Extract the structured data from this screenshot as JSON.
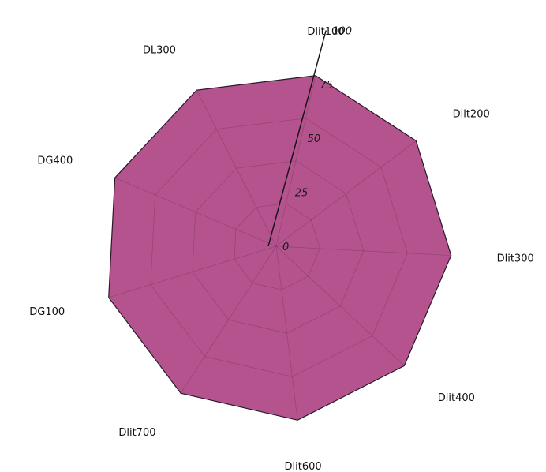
{
  "chart_data": {
    "type": "radar",
    "categories": [
      "Dlit100",
      "Dlit200",
      "Dlit300",
      "Dlit400",
      "Dlit600",
      "Dlit700",
      "DG100",
      "DG400",
      "DL300"
    ],
    "series": [
      {
        "values": [
          100,
          100,
          100,
          100,
          100,
          100,
          100,
          100,
          100
        ],
        "color": "#b5538f"
      }
    ],
    "radial_ticks": [
      "0",
      "25",
      "50",
      "75",
      "100"
    ],
    "radial_tick_values": [
      0,
      25,
      50,
      75,
      100
    ],
    "rlim": [
      0,
      100
    ],
    "grid": true,
    "colors": {
      "fill": "#b5538f",
      "outline": "#2a1a2a",
      "grid": "#7d3b62",
      "axis": "#111111"
    }
  }
}
